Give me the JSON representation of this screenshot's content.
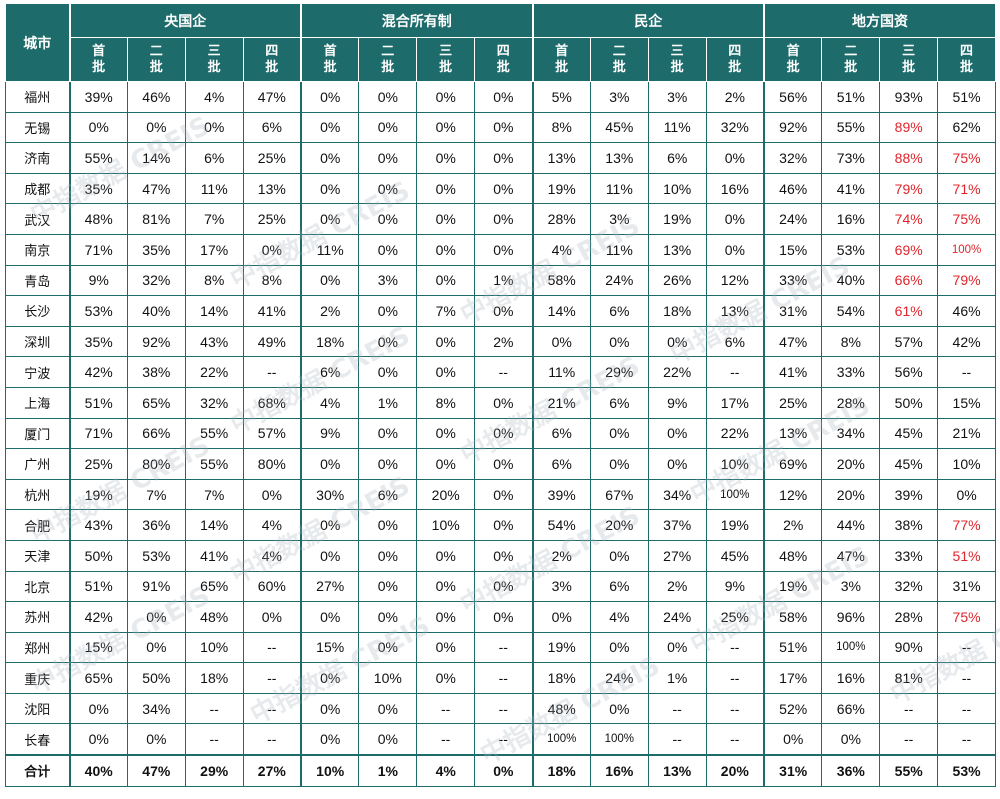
{
  "header": {
    "city_label": "城市",
    "groups": [
      "央国企",
      "混合所有制",
      "民企",
      "地方国资"
    ],
    "batches": [
      [
        "首",
        "批"
      ],
      [
        "二",
        "批"
      ],
      [
        "三",
        "批"
      ],
      [
        "四",
        "批"
      ]
    ]
  },
  "rows": [
    {
      "city": "福州",
      "values": [
        "39%",
        "46%",
        "4%",
        "47%",
        "0%",
        "0%",
        "0%",
        "0%",
        "5%",
        "3%",
        "3%",
        "2%",
        "56%",
        "51%",
        "93%",
        "51%"
      ]
    },
    {
      "city": "无锡",
      "values": [
        "0%",
        "0%",
        "0%",
        "6%",
        "0%",
        "0%",
        "0%",
        "0%",
        "8%",
        "45%",
        "11%",
        "32%",
        "92%",
        "55%",
        "89%",
        "62%"
      ]
    },
    {
      "city": "济南",
      "values": [
        "55%",
        "14%",
        "6%",
        "25%",
        "0%",
        "0%",
        "0%",
        "0%",
        "13%",
        "13%",
        "6%",
        "0%",
        "32%",
        "73%",
        "88%",
        "75%"
      ]
    },
    {
      "city": "成都",
      "values": [
        "35%",
        "47%",
        "11%",
        "13%",
        "0%",
        "0%",
        "0%",
        "0%",
        "19%",
        "11%",
        "10%",
        "16%",
        "46%",
        "41%",
        "79%",
        "71%"
      ]
    },
    {
      "city": "武汉",
      "values": [
        "48%",
        "81%",
        "7%",
        "25%",
        "0%",
        "0%",
        "0%",
        "0%",
        "28%",
        "3%",
        "19%",
        "0%",
        "24%",
        "16%",
        "74%",
        "75%"
      ]
    },
    {
      "city": "南京",
      "values": [
        "71%",
        "35%",
        "17%",
        "0%",
        "11%",
        "0%",
        "0%",
        "0%",
        "4%",
        "11%",
        "13%",
        "0%",
        "15%",
        "53%",
        "69%",
        "100%"
      ]
    },
    {
      "city": "青岛",
      "values": [
        "9%",
        "32%",
        "8%",
        "8%",
        "0%",
        "3%",
        "0%",
        "1%",
        "58%",
        "24%",
        "26%",
        "12%",
        "33%",
        "40%",
        "66%",
        "79%"
      ]
    },
    {
      "city": "长沙",
      "values": [
        "53%",
        "40%",
        "14%",
        "41%",
        "2%",
        "0%",
        "7%",
        "0%",
        "14%",
        "6%",
        "18%",
        "13%",
        "31%",
        "54%",
        "61%",
        "46%"
      ]
    },
    {
      "city": "深圳",
      "values": [
        "35%",
        "92%",
        "43%",
        "49%",
        "18%",
        "0%",
        "0%",
        "2%",
        "0%",
        "0%",
        "0%",
        "6%",
        "47%",
        "8%",
        "57%",
        "42%"
      ]
    },
    {
      "city": "宁波",
      "values": [
        "42%",
        "38%",
        "22%",
        "--",
        "6%",
        "0%",
        "0%",
        "--",
        "11%",
        "29%",
        "22%",
        "--",
        "41%",
        "33%",
        "56%",
        "--"
      ]
    },
    {
      "city": "上海",
      "values": [
        "51%",
        "65%",
        "32%",
        "68%",
        "4%",
        "1%",
        "8%",
        "0%",
        "21%",
        "6%",
        "9%",
        "17%",
        "25%",
        "28%",
        "50%",
        "15%"
      ]
    },
    {
      "city": "厦门",
      "values": [
        "71%",
        "66%",
        "55%",
        "57%",
        "9%",
        "0%",
        "0%",
        "0%",
        "6%",
        "0%",
        "0%",
        "22%",
        "13%",
        "34%",
        "45%",
        "21%"
      ]
    },
    {
      "city": "广州",
      "values": [
        "25%",
        "80%",
        "55%",
        "80%",
        "0%",
        "0%",
        "0%",
        "0%",
        "6%",
        "0%",
        "0%",
        "10%",
        "69%",
        "20%",
        "45%",
        "10%"
      ]
    },
    {
      "city": "杭州",
      "values": [
        "19%",
        "7%",
        "7%",
        "0%",
        "30%",
        "6%",
        "20%",
        "0%",
        "39%",
        "67%",
        "34%",
        "100%",
        "12%",
        "20%",
        "39%",
        "0%"
      ]
    },
    {
      "city": "合肥",
      "values": [
        "43%",
        "36%",
        "14%",
        "4%",
        "0%",
        "0%",
        "10%",
        "0%",
        "54%",
        "20%",
        "37%",
        "19%",
        "2%",
        "44%",
        "38%",
        "77%"
      ]
    },
    {
      "city": "天津",
      "values": [
        "50%",
        "53%",
        "41%",
        "4%",
        "0%",
        "0%",
        "0%",
        "0%",
        "2%",
        "0%",
        "27%",
        "45%",
        "48%",
        "47%",
        "33%",
        "51%"
      ]
    },
    {
      "city": "北京",
      "values": [
        "51%",
        "91%",
        "65%",
        "60%",
        "27%",
        "0%",
        "0%",
        "0%",
        "3%",
        "6%",
        "2%",
        "9%",
        "19%",
        "3%",
        "32%",
        "31%"
      ]
    },
    {
      "city": "苏州",
      "values": [
        "42%",
        "0%",
        "48%",
        "0%",
        "0%",
        "0%",
        "0%",
        "0%",
        "0%",
        "4%",
        "24%",
        "25%",
        "58%",
        "96%",
        "28%",
        "75%"
      ]
    },
    {
      "city": "郑州",
      "values": [
        "15%",
        "0%",
        "10%",
        "--",
        "15%",
        "0%",
        "0%",
        "--",
        "19%",
        "0%",
        "0%",
        "--",
        "51%",
        "100%",
        "90%",
        "--"
      ]
    },
    {
      "city": "重庆",
      "values": [
        "65%",
        "50%",
        "18%",
        "--",
        "0%",
        "10%",
        "0%",
        "--",
        "18%",
        "24%",
        "1%",
        "--",
        "17%",
        "16%",
        "81%",
        "--"
      ]
    },
    {
      "city": "沈阳",
      "values": [
        "0%",
        "34%",
        "--",
        "--",
        "0%",
        "0%",
        "--",
        "--",
        "48%",
        "0%",
        "--",
        "--",
        "52%",
        "66%",
        "--",
        "--"
      ]
    },
    {
      "city": "长春",
      "values": [
        "0%",
        "0%",
        "--",
        "--",
        "0%",
        "0%",
        "--",
        "--",
        "100%",
        "100%",
        "--",
        "--",
        "0%",
        "0%",
        "--",
        "--"
      ]
    }
  ],
  "total": {
    "city": "合计",
    "values": [
      "40%",
      "47%",
      "29%",
      "27%",
      "10%",
      "1%",
      "4%",
      "0%",
      "18%",
      "16%",
      "13%",
      "20%",
      "31%",
      "36%",
      "55%",
      "53%"
    ]
  },
  "highlight_color": "#e0242b",
  "highlights": {
    "无锡": [
      14
    ],
    "济南": [
      14,
      15
    ],
    "成都": [
      14,
      15
    ],
    "武汉": [
      14,
      15
    ],
    "南京": [
      14,
      15
    ],
    "青岛": [
      14,
      15
    ],
    "长沙": [
      14
    ],
    "合肥": [
      15
    ],
    "天津": [
      15
    ],
    "苏州": [
      15
    ]
  },
  "watermark": "中指数据 CREIS"
}
